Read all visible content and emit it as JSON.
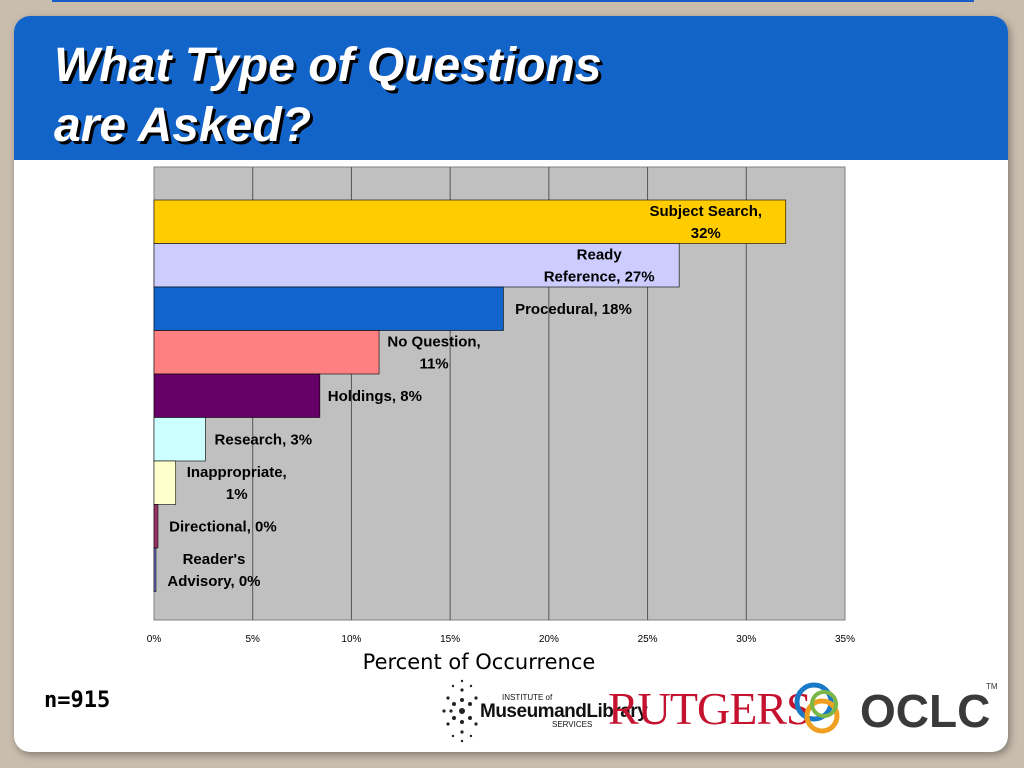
{
  "slide": {
    "title_line1": "What Type of Questions",
    "title_line2": "are Asked?",
    "sample_size": "n=915"
  },
  "chart_data": {
    "type": "bar",
    "orientation": "horizontal",
    "title": "",
    "xlabel": "Percent of Occurrence",
    "ylabel": "",
    "xlim": [
      0,
      35
    ],
    "x_ticks": [
      "0%",
      "5%",
      "10%",
      "15%",
      "20%",
      "25%",
      "30%",
      "35%"
    ],
    "grid": "vertical",
    "categories": [
      "Subject Search",
      "Ready Reference",
      "Procedural",
      "No Question",
      "Holdings",
      "Research",
      "Inappropriate",
      "Directional",
      "Reader's Advisory"
    ],
    "values": [
      32,
      26.6,
      17.7,
      11.4,
      8.4,
      2.6,
      1.1,
      0.2,
      0.1
    ],
    "bar_colors": [
      "#ffcc00",
      "#ccccff",
      "#1064cc",
      "#ff8080",
      "#660066",
      "#ccffff",
      "#ffffcc",
      "#993366",
      "#7070cc"
    ],
    "data_labels": [
      [
        "Subject Search,",
        "32%"
      ],
      [
        "Ready",
        "Reference, 27%"
      ],
      [
        "Procedural, 18%"
      ],
      [
        "No Question,",
        "11%"
      ],
      [
        "Holdings, 8%"
      ],
      [
        "Research, 3%"
      ],
      [
        "Inappropriate,",
        "1%"
      ],
      [
        "Directional, 0%"
      ],
      [
        "Reader's",
        "Advisory, 0%"
      ]
    ]
  },
  "logos": {
    "imls_line1": "INSTITUTE of",
    "imls_line2": "MuseumandLibrary",
    "imls_line3": "SERVICES",
    "rutgers": "RUTGERS",
    "oclc": "OCLC",
    "oclc_tm": "TM"
  },
  "colors": {
    "header": "#1264c8",
    "plot_background": "#c0c0c0",
    "rutgers_red": "#c4122f",
    "oclc_gray": "#3a3a3a"
  }
}
